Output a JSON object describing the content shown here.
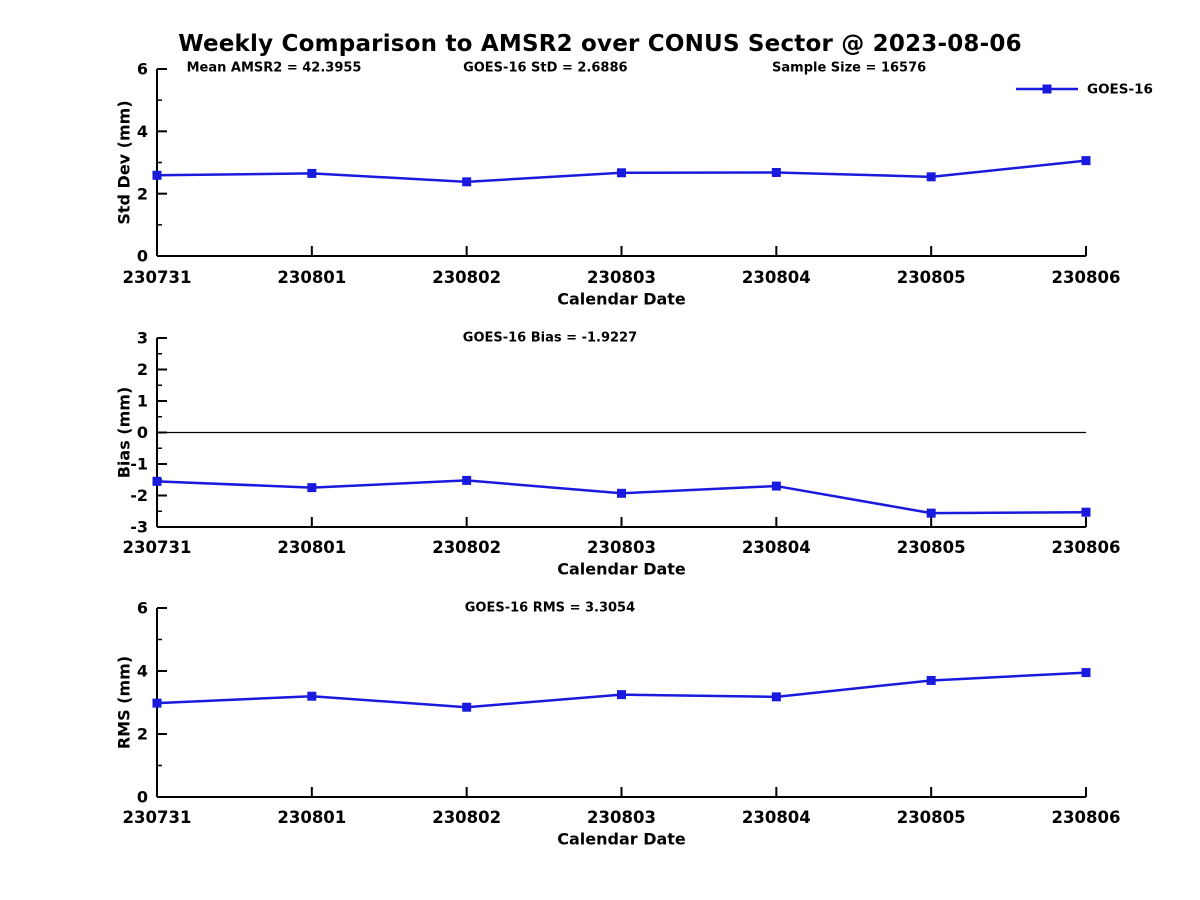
{
  "title": "Weekly Comparison to AMSR2 over CONUS Sector @ 2023-08-06",
  "colors": {
    "line": "#1a1ade",
    "axis": "#000000",
    "text": "#000000",
    "background": "#ffffff"
  },
  "legend": {
    "label": "GOES-16",
    "marker": "square",
    "position": "top-right"
  },
  "chart_data": [
    {
      "type": "line",
      "name": "std-dev-panel",
      "ylabel": "Std Dev (mm)",
      "xlabel": "Calendar Date",
      "categories": [
        "230731",
        "230801",
        "230802",
        "230803",
        "230804",
        "230805",
        "230806"
      ],
      "series": [
        {
          "name": "GOES-16",
          "values": [
            2.59,
            2.65,
            2.38,
            2.67,
            2.68,
            2.54,
            3.06
          ]
        }
      ],
      "ylim": [
        0,
        6
      ],
      "yticks": [
        0,
        2,
        4,
        6
      ],
      "minor_yticks": [
        1,
        3,
        5
      ],
      "grid": false,
      "zero_line": false,
      "legend_visible": true,
      "annotations": [
        "Mean AMSR2 = 42.3955",
        "GOES-16 StD = 2.6886",
        "Sample Size = 16576"
      ]
    },
    {
      "type": "line",
      "name": "bias-panel",
      "ylabel": "Bias (mm)",
      "xlabel": "Calendar Date",
      "categories": [
        "230731",
        "230801",
        "230802",
        "230803",
        "230804",
        "230805",
        "230806"
      ],
      "series": [
        {
          "name": "GOES-16",
          "values": [
            -1.55,
            -1.75,
            -1.52,
            -1.93,
            -1.7,
            -2.56,
            -2.53
          ]
        }
      ],
      "ylim": [
        -3,
        3
      ],
      "yticks": [
        3,
        2,
        1,
        0,
        -1,
        -2,
        -3
      ],
      "minor_yticks": [
        2.5,
        1.5,
        0.5,
        -0.5,
        -1.5,
        -2.5
      ],
      "grid": false,
      "zero_line": true,
      "legend_visible": false,
      "annotations": [
        "GOES-16 Bias  = -1.9227"
      ]
    },
    {
      "type": "line",
      "name": "rms-panel",
      "ylabel": "RMS (mm)",
      "xlabel": "Calendar Date",
      "categories": [
        "230731",
        "230801",
        "230802",
        "230803",
        "230804",
        "230805",
        "230806"
      ],
      "series": [
        {
          "name": "GOES-16",
          "values": [
            2.98,
            3.2,
            2.85,
            3.25,
            3.18,
            3.7,
            3.95
          ]
        }
      ],
      "ylim": [
        0,
        6
      ],
      "yticks": [
        0,
        2,
        4,
        6
      ],
      "minor_yticks": [
        1,
        3,
        5
      ],
      "grid": false,
      "zero_line": false,
      "legend_visible": false,
      "annotations": [
        "GOES-16 RMS = 3.3054"
      ]
    }
  ]
}
